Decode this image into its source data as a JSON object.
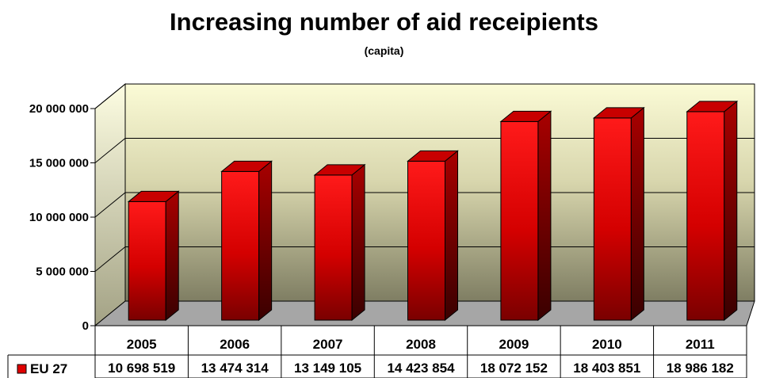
{
  "chart_data": {
    "type": "bar",
    "title": "Increasing number of aid receipients",
    "subtitle": "(capita)",
    "categories": [
      "2005",
      "2006",
      "2007",
      "2008",
      "2009",
      "2010",
      "2011"
    ],
    "series": [
      {
        "name": "EU 27",
        "values": [
          10698519,
          13474314,
          13149105,
          14423854,
          18072152,
          18403851,
          18986182
        ],
        "value_labels": [
          "10 698 519",
          "13 474 314",
          "13 149 105",
          "14 423 854",
          "18 072 152",
          "18 403 851",
          "18 986 182"
        ],
        "color": "#e00000"
      }
    ],
    "ylim": [
      0,
      20000000
    ],
    "yticks": [
      0,
      5000000,
      10000000,
      15000000,
      20000000
    ],
    "ytick_labels": [
      "0",
      "5 000 000",
      "10 000 000",
      "15 000 000",
      "20 000 000"
    ],
    "grid": true,
    "data_table": true,
    "style": "3d-column"
  }
}
